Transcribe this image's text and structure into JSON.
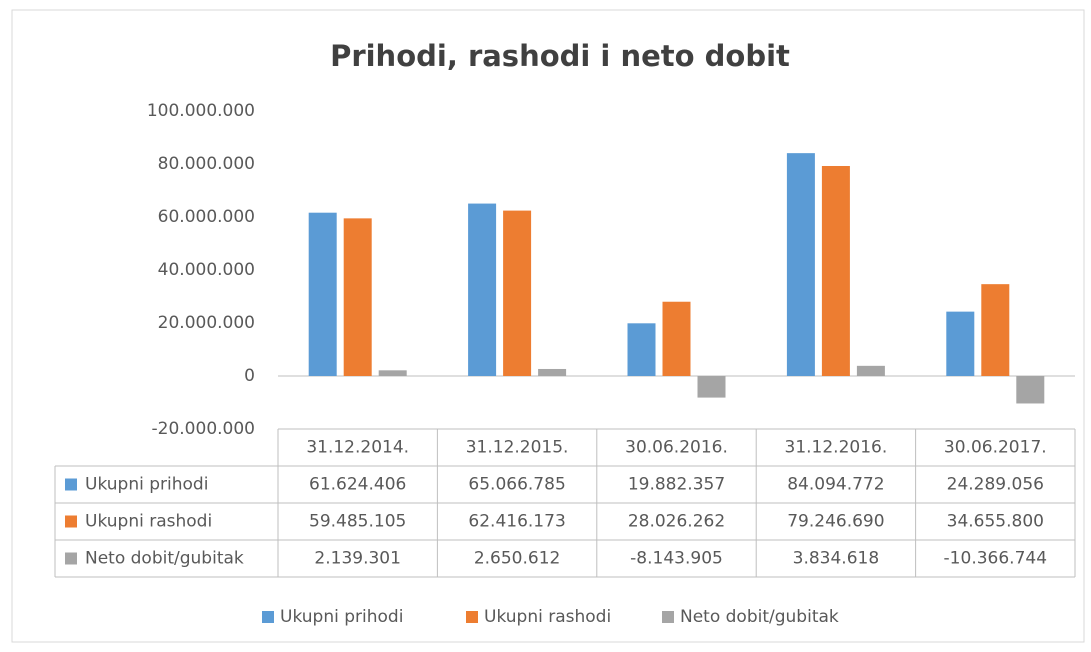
{
  "chart_data": {
    "type": "bar",
    "title": "Prihodi, rashodi i neto dobit",
    "categories": [
      "31.12.2014.",
      "31.12.2015.",
      "30.06.2016.",
      "31.12.2016.",
      "30.06.2017."
    ],
    "series": [
      {
        "name": "Ukupni prihodi",
        "color": "#5b9bd5",
        "values": [
          61624406,
          65066785,
          19882357,
          84094772,
          24289056
        ],
        "value_labels": [
          "61.624.406",
          "65.066.785",
          "19.882.357",
          "84.094.772",
          "24.289.056"
        ]
      },
      {
        "name": "Ukupni rashodi",
        "color": "#ed7d31",
        "values": [
          59485105,
          62416173,
          28026262,
          79246690,
          34655800
        ],
        "value_labels": [
          "59.485.105",
          "62.416.173",
          "28.026.262",
          "79.246.690",
          "34.655.800"
        ]
      },
      {
        "name": "Neto dobit/gubitak",
        "color": "#a5a5a5",
        "values": [
          2139301,
          2650612,
          -8143905,
          3834618,
          -10366744
        ],
        "value_labels": [
          "2.139.301",
          "2.650.612",
          "-8.143.905",
          "3.834.618",
          "-10.366.744"
        ]
      }
    ],
    "ylim": [
      -20000000,
      100000000
    ],
    "yticks": [
      {
        "value": -20000000,
        "label": "-20.000.000"
      },
      0,
      {
        "value": 20000000,
        "label": "20.000.000"
      },
      {
        "value": 40000000,
        "label": "40.000.000"
      },
      {
        "value": 60000000,
        "label": "60.000.000"
      },
      {
        "value": 80000000,
        "label": "80.000.000"
      },
      {
        "value": 100000000,
        "label": "100.000.000"
      }
    ],
    "grid": false,
    "legend": "bottom"
  }
}
